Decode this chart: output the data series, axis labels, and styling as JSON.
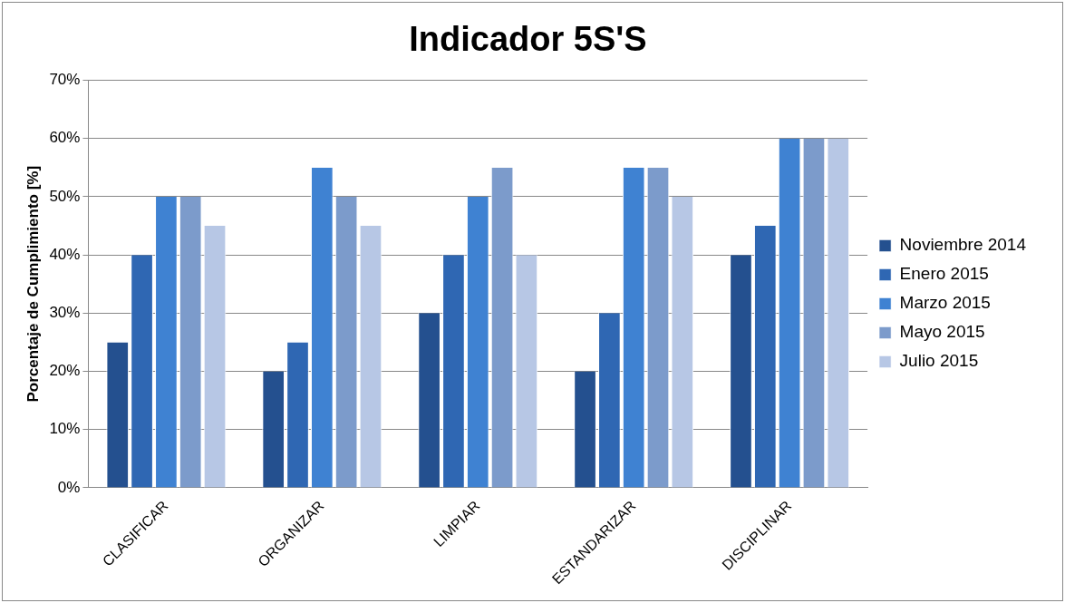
{
  "chart_data": {
    "type": "bar",
    "title": "Indicador 5S'S",
    "ylabel": "Porcentaje de Cumplimiento [%]",
    "categories": [
      "CLASIFICAR",
      "ORGANIZAR",
      "LIMPIAR",
      "ESTANDARIZAR",
      "DISCIPLINAR"
    ],
    "series": [
      {
        "name": "Noviembre 2014",
        "color": "#24508f",
        "values": [
          25,
          20,
          30,
          20,
          40
        ]
      },
      {
        "name": "Enero 2015",
        "color": "#2f67b3",
        "values": [
          40,
          25,
          40,
          30,
          45
        ]
      },
      {
        "name": "Marzo 2015",
        "color": "#3f82d2",
        "values": [
          50,
          55,
          50,
          55,
          60
        ]
      },
      {
        "name": "Mayo 2015",
        "color": "#7c9bcb",
        "values": [
          50,
          50,
          55,
          55,
          60
        ]
      },
      {
        "name": "Julio 2015",
        "color": "#b7c7e5",
        "values": [
          45,
          45,
          40,
          50,
          60
        ]
      }
    ],
    "ylim": [
      0,
      70
    ],
    "yticks": [
      {
        "value": 0,
        "label": "0%"
      },
      {
        "value": 10,
        "label": "10%"
      },
      {
        "value": 20,
        "label": "20%"
      },
      {
        "value": 30,
        "label": "30%"
      },
      {
        "value": 40,
        "label": "40%"
      },
      {
        "value": 50,
        "label": "50%"
      },
      {
        "value": 60,
        "label": "60%"
      },
      {
        "value": 70,
        "label": "70%"
      }
    ],
    "grid": "y",
    "legend": "right"
  }
}
